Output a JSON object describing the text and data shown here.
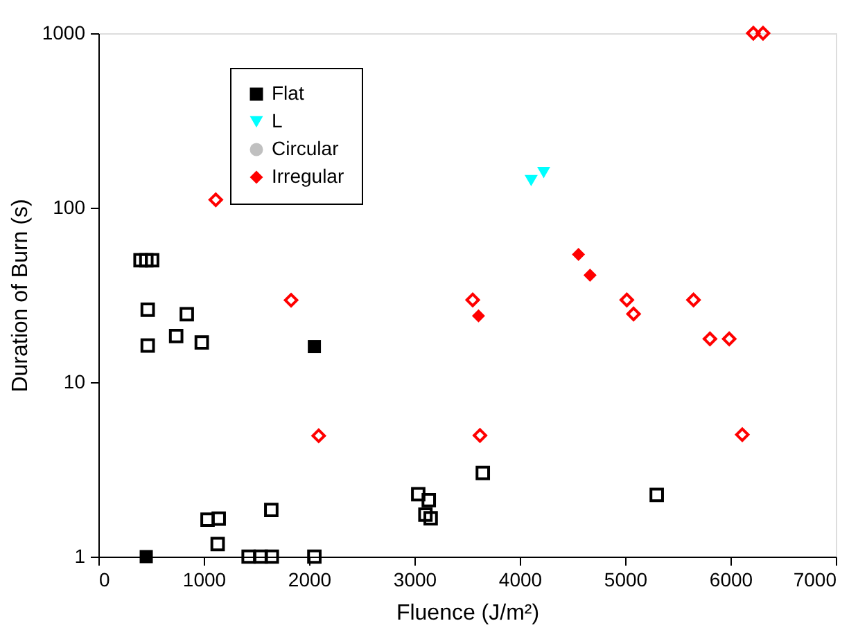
{
  "chart_data": {
    "type": "scatter",
    "xlabel": "Fluence (J/m²)",
    "ylabel": "Duration of Burn (s)",
    "xlim": [
      0,
      7000
    ],
    "xticks": [
      0,
      1000,
      2000,
      3000,
      4000,
      5000,
      6000,
      7000
    ],
    "ylim": [
      1,
      1000
    ],
    "yticks": [
      1,
      10,
      100,
      1000
    ],
    "log": true,
    "grid": false,
    "legend": "top left",
    "series": [
      {
        "name": "Flat",
        "color": "#000000",
        "marker": "square",
        "x": [
          454,
          2050
        ],
        "values": [
          1,
          16
        ]
      },
      {
        "name": "L",
        "color": "#00ffff",
        "marker": "triangle",
        "x": [
          4108,
          4227
        ],
        "values": [
          143,
          159
        ]
      },
      {
        "name": "Circular",
        "color": "#c0c0c0",
        "marker": "circle"
      },
      {
        "name": "Irregular",
        "color": "#ff0000",
        "marker": "diamond",
        "x": [
          4557,
          4667,
          3608
        ],
        "values": [
          54,
          41,
          24
        ]
      },
      {
        "color": "#000000",
        "marker": "square",
        "x": [
          400,
          455,
          510,
          468,
          839,
          468,
          738,
          981,
          1036,
          1142,
          1132,
          1641,
          1426,
          1541,
          1646,
          2050,
          3036,
          3136,
          3104,
          3154,
          3649,
          5300
        ],
        "values": [
          50,
          50,
          50,
          26,
          24.5,
          16.2,
          18.4,
          16.9,
          1.63,
          1.65,
          1.18,
          1.85,
          1,
          1,
          1,
          1,
          2.28,
          2.11,
          1.74,
          1.66,
          3.02,
          2.26
        ]
      },
      {
        "color": "#ff0000",
        "marker": "diamond",
        "x": [
          3553,
          3622,
          5016,
          5080,
          5649,
          5805,
          5988,
          6112,
          6217,
          6309,
          1829,
          2091,
          1114
        ],
        "values": [
          29.6,
          4.95,
          29.6,
          24.6,
          29.6,
          17.7,
          17.7,
          5,
          1000,
          1000,
          29.5,
          4.93,
          111
        ]
      }
    ]
  }
}
